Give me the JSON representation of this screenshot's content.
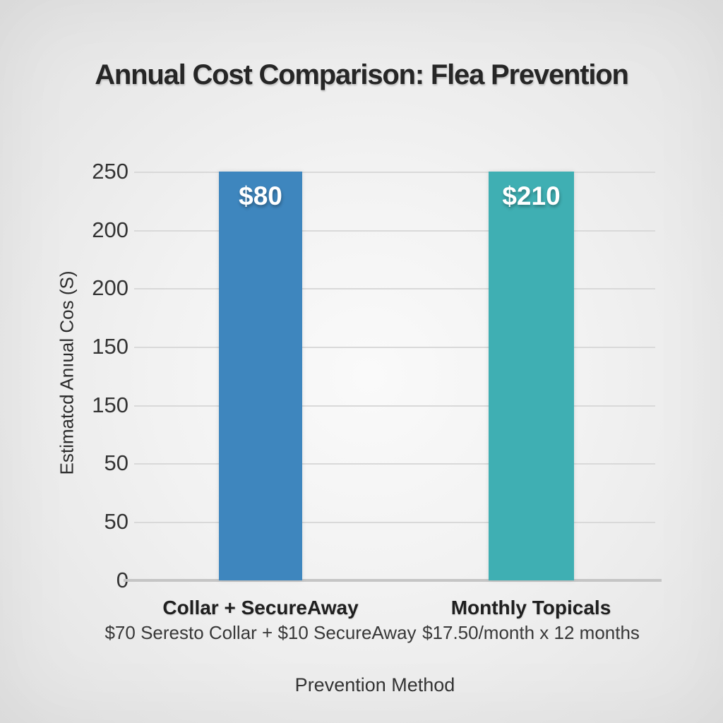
{
  "chart_data": {
    "type": "bar",
    "title": "Annual Cost Comparison: Flea Prevention",
    "xlabel": "Prevention Method",
    "ylabel": "Estimatcd Anıual Cos (S)",
    "categories": [
      "Collar + SecureAway",
      "Monthly Topicals"
    ],
    "category_subtitles": [
      "$70 Seresto Collar + $10 SecureAway",
      "$17.50/month x 12 months"
    ],
    "values": [
      80,
      210
    ],
    "bar_value_labels": [
      "$80",
      "$210"
    ],
    "bar_colors": [
      "#3e86be",
      "#3fafb3"
    ],
    "y_tick_labels": [
      "250",
      "200",
      "200",
      "150",
      "150",
      "50",
      "50",
      "0"
    ],
    "grid": true,
    "legend": "none",
    "layout_hints": {
      "bars_rendered_full_height_to_top_gridline": true,
      "y_tick_labels_duplicated_as_rendered": true,
      "gridline_color": "#d9d9d9",
      "axis_line_color": "#c5c5c5",
      "background": "light gray radial vignette"
    }
  }
}
